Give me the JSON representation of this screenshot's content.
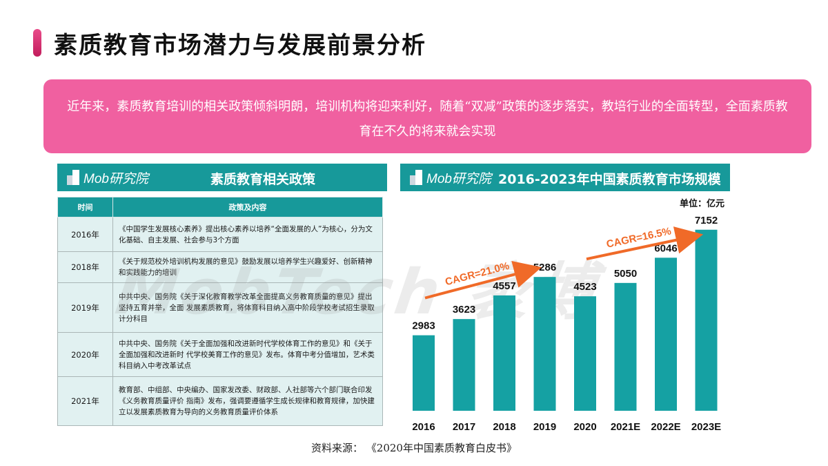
{
  "page": {
    "title": "素质教育市场潜力与发展前景分析",
    "summary": "近年来，素质教育培训的相关政策倾斜明朗，培训机构将迎来利好，随着“双减”政策的逐步落实，教培行业的全面转型，全面素质教育在不久的将来就会实现",
    "source": "资料来源：  《2020年中国素质教育白皮书》",
    "watermark": "MobTech 袤博"
  },
  "logo_text": "Mob研究院",
  "colors": {
    "accent_pink": "#f060a0",
    "teal": "#17999a",
    "bar": "#15a1a3",
    "arrow": "#f06a28"
  },
  "policy": {
    "title": "素质教育相关政策",
    "headers": [
      "时间",
      "政策及内容"
    ],
    "rows": [
      {
        "year": "2016年",
        "content": "《中国学生发展核心素养》提出核心素养以培养“全面发展的人”为核心，分为文化基础、自主发展、社会参与3个方面"
      },
      {
        "year": "2018年",
        "content": "《关于规范校外培训机构发展的意见》鼓励发展以培养学生兴趣爱好、创新精神和实践能力的培训"
      },
      {
        "year": "2019年",
        "content": "中共中央、国务院《关于深化教育教学改革全面提高义务教育质量的意见》提出坚持五育并举，全面 发展素质教育，将体育科目纳入高中阶段学校考试招生录取计分科目"
      },
      {
        "year": "2020年",
        "content": "中共中央、国务院《关于全面加强和改进新时代学校体育工作的意见》和《关于全面加强和改进新时 代学校美育工作的意见》发布。体育中考分值增加，艺术类科目纳入中考改革试点"
      },
      {
        "year": "2021年",
        "content": "教育部、中组部、中央编办、国家发改委、财政部、人社部等六个部门联合印发《义务教育质量评价 指南》发布，强调要遵循学生成长规律和教育规律，加快建立以发展素质教育为导向的义务教育质量评价体系"
      }
    ]
  },
  "market": {
    "title": "2016-2023年中国素质教育市场规模",
    "unit": "单位：亿元"
  },
  "chart_data": {
    "type": "bar",
    "title": "2016-2023年中国素质教育市场规模",
    "unit": "单位：亿元",
    "categories": [
      "2016",
      "2017",
      "2018",
      "2019",
      "2020",
      "2021E",
      "2022E",
      "2023E"
    ],
    "values": [
      2983,
      3623,
      4557,
      5286,
      4523,
      5050,
      6046,
      7152
    ],
    "ylim": [
      0,
      7500
    ],
    "grid": false,
    "annotations": [
      {
        "text": "CAGR=21.0%",
        "from": "2016",
        "to": "2019"
      },
      {
        "text": "CAGR=16.5%",
        "from": "2020",
        "to": "2023E"
      }
    ]
  }
}
